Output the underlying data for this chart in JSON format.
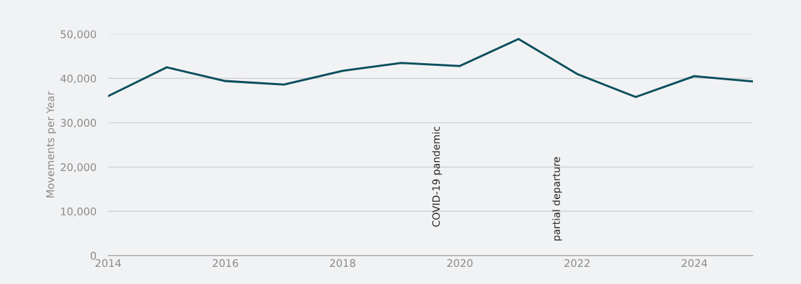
{
  "chart_data": {
    "type": "line",
    "ylabel": "Movements per Year",
    "x": [
      2014,
      2015,
      2016,
      2017,
      2018,
      2019,
      2020,
      2021,
      2022,
      2023,
      2024,
      2025
    ],
    "series": [
      {
        "color": "#0b4f5e",
        "values": [
          36000,
          42500,
          39400,
          38600,
          41700,
          43500,
          42800,
          48900,
          41000,
          35800,
          40500,
          39300
        ]
      }
    ],
    "xlim": [
      2014,
      2025
    ],
    "xticks": [
      2014,
      2016,
      2018,
      2020,
      2022,
      2024
    ],
    "ylim": [
      0,
      50000
    ],
    "yticks": [
      {
        "value": 0,
        "label": "0"
      },
      {
        "value": 10000,
        "label": "10,000"
      },
      {
        "value": 20000,
        "label": "20,000"
      },
      {
        "value": 30000,
        "label": "30,000"
      },
      {
        "value": 40000,
        "label": "40,000"
      },
      {
        "value": 50000,
        "label": "50,000"
      }
    ],
    "grid": "y",
    "marker": "none",
    "line_style": "solid",
    "annotations": [
      "COVID-19 pandemic",
      "partial departure"
    ]
  }
}
